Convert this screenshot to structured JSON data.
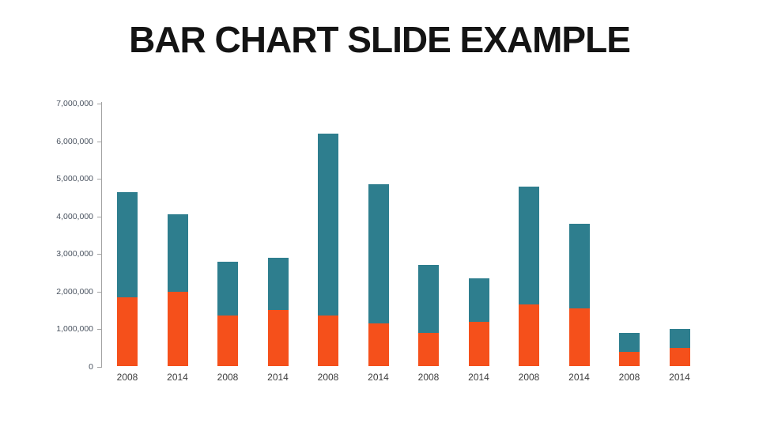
{
  "title": "BAR CHART SLIDE EXAMPLE",
  "chart_data": {
    "type": "bar",
    "stacked": true,
    "title": "BAR CHART SLIDE EXAMPLE",
    "xlabel": "",
    "ylabel": "",
    "ylim": [
      0,
      7000000
    ],
    "grid": false,
    "legend": "none",
    "y_tick_labels": [
      "0",
      "1,000,000",
      "2,000,000",
      "3,000,000",
      "4,000,000",
      "5,000,000",
      "6,000,000",
      "7,000,000"
    ],
    "categories": [
      "2008",
      "2014",
      "2008",
      "2014",
      "2008",
      "2014",
      "2008",
      "2014",
      "2008",
      "2014",
      "2008",
      "2014"
    ],
    "series": [
      {
        "name": "bottom segment",
        "color": "#F5501B",
        "values": [
          1850000,
          2000000,
          1350000,
          1500000,
          1350000,
          1150000,
          900000,
          1200000,
          1650000,
          1550000,
          400000,
          500000
        ]
      },
      {
        "name": "top segment",
        "color": "#2E7E8E",
        "values": [
          2800000,
          2050000,
          1450000,
          1400000,
          4850000,
          3700000,
          1800000,
          1150000,
          3150000,
          2250000,
          500000,
          500000
        ]
      }
    ],
    "totals": [
      4650000,
      4050000,
      2800000,
      2900000,
      6200000,
      4850000,
      2700000,
      2350000,
      4800000,
      3800000,
      900000,
      1000000
    ]
  },
  "colors": {
    "background": "#FFFFFF",
    "title_text": "#141414",
    "axis_line": "#A3A3A3",
    "y_tick_text": "#49525F",
    "x_tick_text": "#3D3D3D"
  }
}
